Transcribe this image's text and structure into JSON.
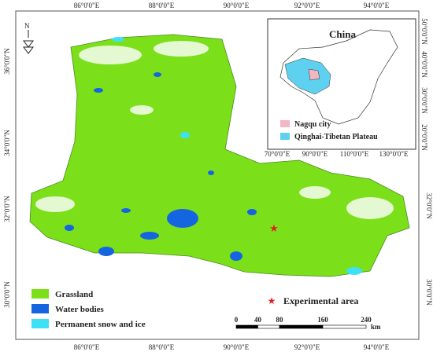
{
  "map": {
    "top_labels": [
      "86°0'0\"E",
      "88°0'0\"E",
      "90°0'0\"E",
      "92°0'0\"E",
      "94°0'0\"E"
    ],
    "bottom_labels": [
      "86°0'0\"E",
      "88°0'0\"E",
      "90°0'0\"E",
      "92°0'0\"E",
      "94°0'0\"E"
    ],
    "left_labels": [
      "36°0'0\"N",
      "34°0'0\"N",
      "32°0'0\"N",
      "30°0'0\"N"
    ],
    "right_labels": [
      "32°0'0\"N",
      "30°0'0\"N"
    ],
    "north": "N",
    "inset": {
      "title": "China",
      "x_labels": [
        "70°0'0\"E",
        "90°0'0\"E",
        "110°0'0\"E",
        "130°0'0\"E"
      ],
      "y_labels": [
        "50°0'0\"N",
        "40°0'0\"N",
        "30°0'0\"N",
        "20°0'0\"N"
      ],
      "legend": [
        {
          "label": "Nagqu city",
          "color": "#f4b6c2"
        },
        {
          "label": "Qinghai-Tibetan Plateau",
          "color": "#5ed0f0"
        }
      ]
    },
    "legend": [
      {
        "label": "Grassland",
        "color": "#7be01a"
      },
      {
        "label": "Water bodies",
        "color": "#1565e0"
      },
      {
        "label": "Permanent snow and ice",
        "color": "#3ee0f5"
      }
    ],
    "marker_label": "Experimental area",
    "scale_bar": {
      "ticks": [
        0,
        40,
        80,
        160,
        240
      ],
      "unit": "km"
    }
  }
}
